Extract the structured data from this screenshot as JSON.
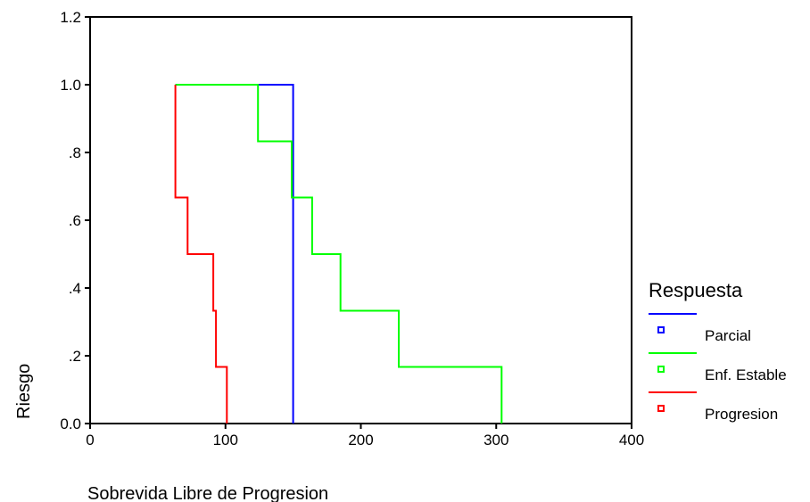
{
  "chart_data": {
    "type": "line",
    "step": true,
    "title": "",
    "xlabel": "Sobrevida Libre de Progresion",
    "ylabel": "Riesgo",
    "xlim": [
      0,
      400
    ],
    "ylim": [
      0,
      1.2
    ],
    "x_ticks": [
      0,
      100,
      200,
      300,
      400
    ],
    "x_tick_labels": [
      "0",
      "100",
      "200",
      "300",
      "400"
    ],
    "y_ticks": [
      0,
      0.2,
      0.4,
      0.6,
      0.8,
      1.0,
      1.2
    ],
    "y_tick_labels": [
      "0.0",
      ".2",
      ".4",
      ".6",
      ".8",
      "1.0",
      "1.2"
    ],
    "grid": false,
    "legend": {
      "title": "Respuesta",
      "placement": "right"
    },
    "series": [
      {
        "name": "Parcial",
        "color": "#0000ff",
        "points": [
          [
            63,
            1.0
          ],
          [
            150,
            1.0
          ],
          [
            150,
            0.0
          ]
        ]
      },
      {
        "name": "Enf. Estable",
        "color": "#00ff00",
        "points": [
          [
            63,
            1.0
          ],
          [
            124,
            1.0
          ],
          [
            124,
            0.833
          ],
          [
            149,
            0.833
          ],
          [
            149,
            0.667
          ],
          [
            164,
            0.667
          ],
          [
            164,
            0.5
          ],
          [
            185,
            0.5
          ],
          [
            185,
            0.333
          ],
          [
            228,
            0.333
          ],
          [
            228,
            0.167
          ],
          [
            304,
            0.167
          ],
          [
            304,
            0.0
          ]
        ]
      },
      {
        "name": "Progresion",
        "color": "#ff0000",
        "points": [
          [
            63,
            1.0
          ],
          [
            63,
            0.833
          ],
          [
            63,
            0.667
          ],
          [
            72,
            0.667
          ],
          [
            72,
            0.5
          ],
          [
            91,
            0.5
          ],
          [
            91,
            0.333
          ],
          [
            93,
            0.333
          ],
          [
            93,
            0.167
          ],
          [
            101,
            0.167
          ],
          [
            101,
            0.0
          ]
        ]
      }
    ]
  }
}
